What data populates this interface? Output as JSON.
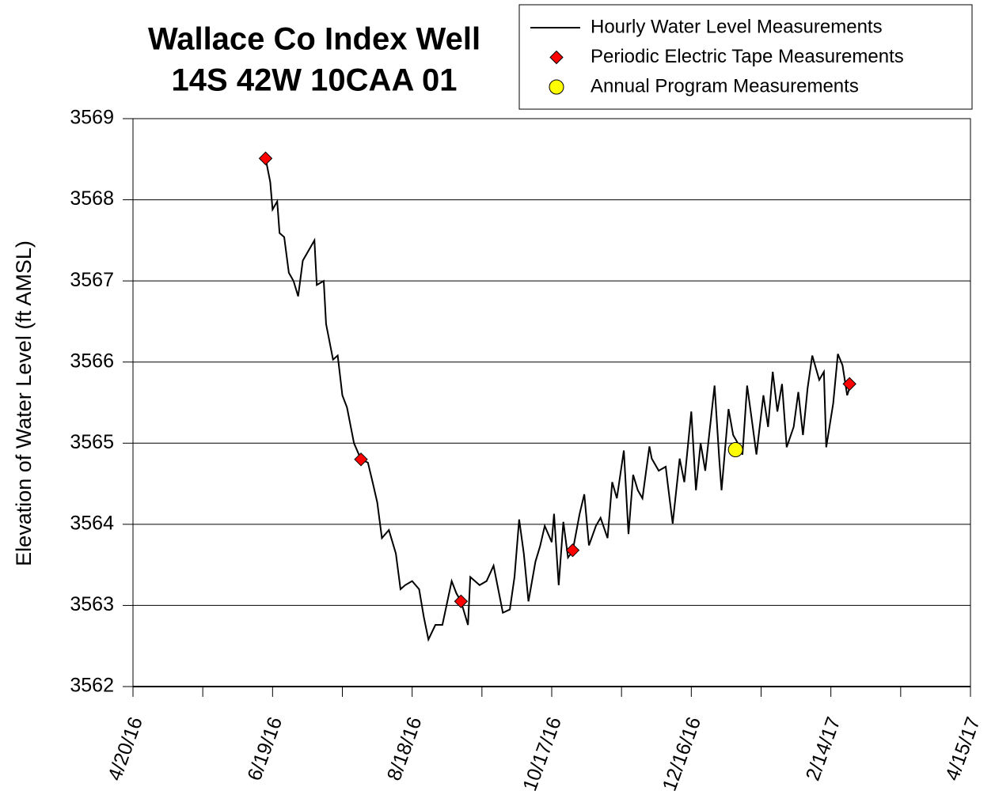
{
  "chart_data": {
    "type": "line",
    "title": "Wallace Co Index Well",
    "subtitle": "14S 42W 10CAA 01",
    "y_label": "Elevation of Water Level (ft AMSL)",
    "xlim": [
      "4/20/16",
      "4/15/17"
    ],
    "xticks": [
      "4/20/16",
      "6/19/16",
      "8/18/16",
      "10/17/16",
      "12/16/16",
      "2/14/17",
      "4/15/17"
    ],
    "xminorticks": [
      "5/20/16",
      "7/19/16",
      "9/17/16",
      "11/16/16",
      "1/15/17",
      "3/16/17"
    ],
    "ylim": [
      3562,
      3569
    ],
    "yticks": [
      3562,
      3563,
      3564,
      3565,
      3566,
      3567,
      3568,
      3569
    ],
    "grid": true,
    "legend": "top-right",
    "series": [
      {
        "name": "Hourly Water Level Measurements",
        "color": "#000000",
        "marker": "none",
        "x": [
          "6/16/16",
          "6/18/16",
          "6/19/16",
          "6/21/16",
          "6/22/16",
          "6/24/16",
          "6/26/16",
          "6/28/16",
          "6/30/16",
          "7/2/16",
          "7/4/16",
          "7/7/16",
          "7/8/16",
          "7/11/16",
          "7/12/16",
          "7/15/16",
          "7/17/16",
          "7/19/16",
          "7/21/16",
          "7/24/16",
          "7/27/16",
          "7/30/16",
          "8/1/16",
          "8/3/16",
          "8/5/16",
          "8/8/16",
          "8/11/16",
          "8/13/16",
          "8/15/16",
          "8/18/16",
          "8/21/16",
          "8/23/16",
          "8/25/16",
          "8/28/16",
          "8/31/16",
          "9/4/16",
          "9/6/16",
          "9/8/16",
          "9/11/16",
          "9/12/16",
          "9/16/16",
          "9/19/16",
          "9/22/16",
          "9/26/16",
          "9/29/16",
          "10/1/16",
          "10/3/16",
          "10/5/16",
          "10/7/16",
          "10/10/16",
          "10/12/16",
          "10/14/16",
          "10/17/16",
          "10/18/16",
          "10/20/16",
          "10/22/16",
          "10/24/16",
          "10/26/16",
          "10/29/16",
          "10/31/16",
          "11/2/16",
          "11/5/16",
          "11/7/16",
          "11/10/16",
          "11/12/16",
          "11/14/16",
          "11/17/16",
          "11/19/16",
          "11/21/16",
          "11/23/16",
          "11/25/16",
          "11/28/16",
          "11/29/16",
          "12/2/16",
          "12/5/16",
          "12/6/16",
          "12/8/16",
          "12/11/16",
          "12/13/16",
          "12/16/16",
          "12/18/16",
          "12/20/16",
          "12/22/16",
          "12/26/16",
          "12/28/16",
          "12/29/16",
          "1/1/17",
          "1/3/17",
          "1/5/17",
          "1/7/17",
          "1/9/17",
          "1/11/17",
          "1/13/17",
          "1/16/17",
          "1/18/17",
          "1/20/17",
          "1/22/17",
          "1/24/17",
          "1/26/17",
          "1/29/17",
          "1/31/17",
          "2/2/17",
          "2/4/17",
          "2/6/17",
          "2/9/17",
          "2/11/17",
          "2/12/17",
          "2/15/17",
          "2/17/17",
          "2/19/17",
          "2/21/17",
          "2/22/17"
        ],
        "values": [
          3568.51,
          3568.22,
          3567.88,
          3567.98,
          3567.59,
          3567.54,
          3567.1,
          3567.0,
          3566.81,
          3567.25,
          3567.35,
          3567.5,
          3566.95,
          3567.0,
          3566.47,
          3566.03,
          3566.08,
          3565.59,
          3565.44,
          3565.0,
          3564.8,
          3564.76,
          3564.52,
          3564.27,
          3563.83,
          3563.93,
          3563.64,
          3563.2,
          3563.25,
          3563.3,
          3563.2,
          3562.86,
          3562.58,
          3562.76,
          3562.76,
          3563.3,
          3563.15,
          3563.05,
          3562.76,
          3563.35,
          3563.25,
          3563.3,
          3563.49,
          3562.91,
          3562.95,
          3563.35,
          3564.06,
          3563.64,
          3563.05,
          3563.54,
          3563.73,
          3563.98,
          3563.78,
          3564.13,
          3563.25,
          3564.03,
          3563.59,
          3563.67,
          3564.13,
          3564.37,
          3563.74,
          3563.98,
          3564.08,
          3563.83,
          3564.52,
          3564.32,
          3564.91,
          3563.88,
          3564.61,
          3564.42,
          3564.32,
          3564.96,
          3564.81,
          3564.66,
          3564.71,
          3564.47,
          3564.01,
          3564.81,
          3564.52,
          3565.39,
          3564.42,
          3565.0,
          3564.66,
          3565.71,
          3564.81,
          3564.42,
          3565.42,
          3565.1,
          3565.0,
          3564.86,
          3565.71,
          3565.29,
          3564.86,
          3565.59,
          3565.2,
          3565.88,
          3565.39,
          3565.73,
          3564.95,
          3565.2,
          3565.63,
          3565.1,
          3565.68,
          3566.08,
          3565.78,
          3565.88,
          3564.95,
          3565.49,
          3566.1,
          3565.96,
          3565.59,
          3565.68
        ]
      },
      {
        "name": "Periodic Electric Tape Measurements",
        "color": "#ff0000",
        "marker": "diamond",
        "x": [
          "6/16/16",
          "7/27/16",
          "9/8/16",
          "10/26/16",
          "2/22/17"
        ],
        "values": [
          3568.51,
          3564.8,
          3563.05,
          3563.68,
          3565.73
        ]
      },
      {
        "name": "Annual Program Measurements",
        "color": "#ffff00",
        "marker": "circle",
        "x": [
          "1/4/17"
        ],
        "values": [
          3564.92
        ]
      }
    ]
  }
}
